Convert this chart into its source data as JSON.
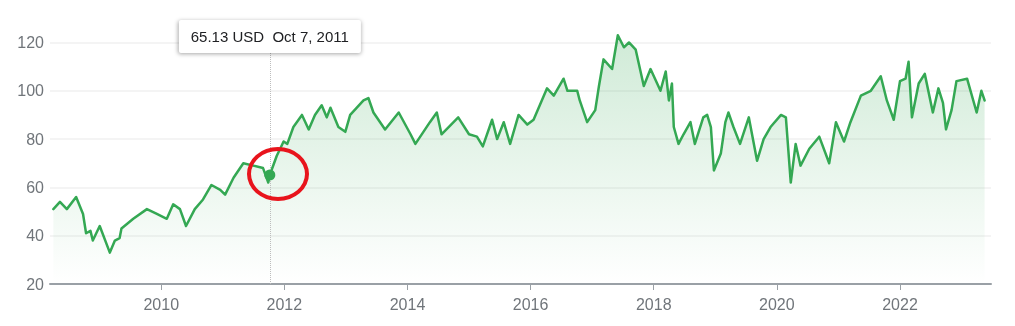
{
  "chart_data": {
    "type": "area",
    "x": [
      "2008-04-01",
      "2008-05-10",
      "2008-06-20",
      "2008-08-14",
      "2008-09-24",
      "2008-10-12",
      "2008-11-07",
      "2008-11-21",
      "2009-01-01",
      "2009-03-02",
      "2009-04-01",
      "2009-04-29",
      "2009-05-10",
      "2009-07-19",
      "2009-10-08",
      "2009-12-06",
      "2010-02-03",
      "2010-03-13",
      "2010-04-22",
      "2010-05-28",
      "2010-07-19",
      "2010-09-06",
      "2010-10-26",
      "2010-12-17",
      "2011-01-15",
      "2011-03-06",
      "2011-05-03",
      "2011-07-01",
      "2011-08-28",
      "2011-09-28",
      "2011-10-07",
      "2011-11-17",
      "2011-12-28",
      "2012-01-19",
      "2012-02-24",
      "2012-04-15",
      "2012-05-25",
      "2012-07-01",
      "2012-08-10",
      "2012-09-09",
      "2012-10-01",
      "2012-11-17",
      "2012-12-28",
      "2013-01-26",
      "2013-04-15",
      "2013-05-14",
      "2013-06-13",
      "2013-08-21",
      "2013-11-10",
      "2014-01-19",
      "2014-02-17",
      "2014-05-14",
      "2014-06-24",
      "2014-07-22",
      "2014-10-29",
      "2015-01-01",
      "2015-02-17",
      "2015-03-24",
      "2015-05-18",
      "2015-06-17",
      "2015-07-26",
      "2015-09-02",
      "2015-10-22",
      "2015-12-13",
      "2016-01-19",
      "2016-04-08",
      "2016-05-18",
      "2016-07-15",
      "2016-08-07",
      "2016-10-04",
      "2016-10-19",
      "2016-12-02",
      "2017-01-19",
      "2017-02-10",
      "2017-03-09",
      "2017-04-29",
      "2017-06-02",
      "2017-07-08",
      "2017-08-07",
      "2017-09-16",
      "2017-11-03",
      "2017-12-13",
      "2018-02-10",
      "2018-03-13",
      "2018-04-01",
      "2018-04-19",
      "2018-04-30",
      "2018-05-28",
      "2018-06-27",
      "2018-08-07",
      "2018-09-02",
      "2018-10-22",
      "2018-11-14",
      "2018-12-06",
      "2018-12-24",
      "2019-02-03",
      "2019-03-02",
      "2019-03-20",
      "2019-04-19",
      "2019-05-28",
      "2019-07-19",
      "2019-09-06",
      "2019-10-15",
      "2019-11-25",
      "2020-01-26",
      "2020-02-24",
      "2020-03-24",
      "2020-04-22",
      "2020-05-21",
      "2020-07-12",
      "2020-09-09",
      "2020-11-07",
      "2020-12-17",
      "2021-02-03",
      "2021-03-13",
      "2021-05-14",
      "2021-07-12",
      "2021-09-09",
      "2021-10-15",
      "2021-11-25",
      "2022-01-01",
      "2022-02-03",
      "2022-02-21",
      "2022-03-13",
      "2022-04-22",
      "2022-05-28",
      "2022-07-15",
      "2022-08-17",
      "2022-09-13",
      "2022-10-01",
      "2022-11-03",
      "2022-12-02",
      "2023-02-03",
      "2023-04-01",
      "2023-04-29",
      "2023-05-18"
    ],
    "series": [
      {
        "color": "#34a853",
        "values": [
          51,
          54,
          51,
          56,
          49,
          41,
          42,
          38,
          44,
          33,
          38,
          39,
          43,
          47,
          51,
          49,
          47,
          53,
          51,
          44,
          51,
          55,
          61,
          59,
          57,
          64,
          70,
          69,
          68,
          62,
          65.13,
          73,
          79,
          78,
          85,
          90,
          84,
          90,
          94,
          89,
          93,
          85,
          83,
          90,
          96,
          97,
          91,
          84,
          91,
          82,
          78,
          87,
          91,
          82,
          89,
          82,
          81,
          77,
          88,
          80,
          87,
          78,
          90,
          86,
          88,
          101,
          98,
          105,
          100,
          100,
          96,
          87,
          92,
          102,
          113,
          109,
          123,
          118,
          120,
          117,
          102,
          109,
          100,
          108,
          96,
          103,
          85,
          78,
          82,
          87,
          78,
          89,
          90,
          85,
          67,
          74,
          87,
          91,
          85,
          78,
          89,
          71,
          80,
          85,
          90,
          89,
          62,
          78,
          69,
          76,
          81,
          70,
          87,
          79,
          87,
          98,
          100,
          106,
          96,
          88,
          104,
          105,
          112,
          89,
          103,
          107,
          91,
          101,
          95,
          84,
          92,
          104,
          105,
          91,
          100,
          96
        ]
      }
    ],
    "xlim": [
      "2008-03-12",
      "2023-06-25"
    ],
    "xticks": [
      "2010",
      "2012",
      "2014",
      "2016",
      "2018",
      "2020",
      "2022"
    ],
    "ylim": [
      20,
      125
    ],
    "yticks": [
      20,
      40,
      60,
      80,
      100,
      120
    ],
    "grid": "y",
    "ref_lines": [
      {
        "axis": "x",
        "value": "2011-10-07",
        "color": "#bdbdbd",
        "line_style": "dotted"
      }
    ],
    "annotations": [
      "65.13 USD  Oct 7, 2011"
    ]
  }
}
